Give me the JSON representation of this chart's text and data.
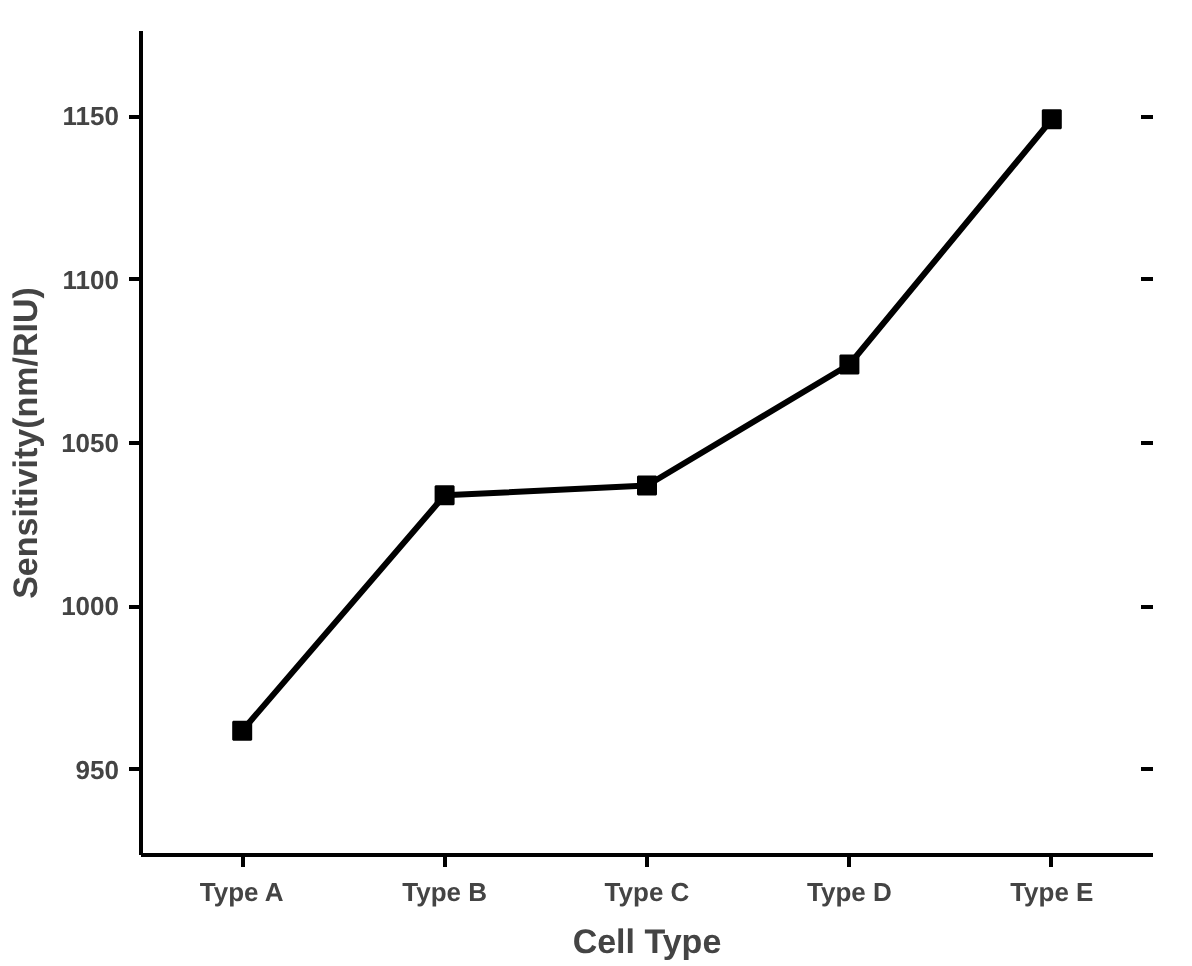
{
  "chart_data": {
    "type": "line",
    "xlabel": "Cell Type",
    "ylabel": "Sensitivity(nm/RIU)",
    "categories": [
      "Type A",
      "Type B",
      "Type C",
      "Type D",
      "Type E"
    ],
    "series": [
      {
        "color": "#000000",
        "values": [
          962,
          1034,
          1037,
          1074,
          1149
        ]
      }
    ],
    "ylim": [
      924,
      1176
    ],
    "yticks": [
      950,
      1000,
      1050,
      1100,
      1150
    ],
    "marker": "square",
    "line_style": "solid",
    "grid": false
  }
}
